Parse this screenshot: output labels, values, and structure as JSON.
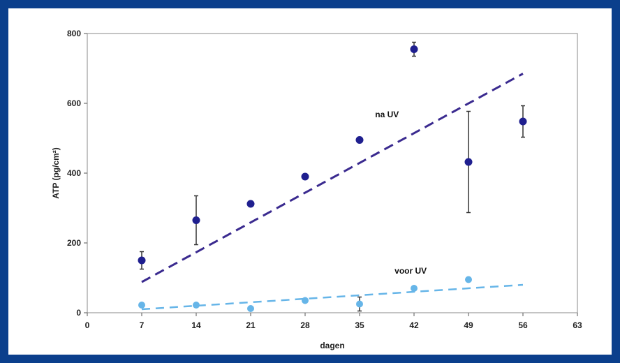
{
  "frame_color": "#0b3f8c",
  "chart_data": {
    "type": "scatter",
    "xlabel": "dagen",
    "ylabel": "ATP (pg/cm²)",
    "xlim": [
      0,
      63
    ],
    "ylim": [
      0,
      800
    ],
    "xticks": [
      0,
      7,
      14,
      21,
      28,
      35,
      42,
      49,
      56,
      63
    ],
    "yticks": [
      0,
      200,
      400,
      600,
      800
    ],
    "grid": false,
    "series": [
      {
        "name": "na UV",
        "color": "#1f1f8f",
        "x": [
          7,
          14,
          21,
          28,
          35,
          42,
          49,
          56
        ],
        "y": [
          150,
          265,
          312,
          390,
          495,
          755,
          432,
          548
        ],
        "err": [
          25,
          70,
          0,
          0,
          0,
          20,
          145,
          45
        ],
        "trend": {
          "x": [
            7,
            56
          ],
          "y": [
            88,
            685
          ],
          "color": "#3a2a8f"
        }
      },
      {
        "name": "voor UV",
        "color": "#66b5e8",
        "x": [
          7,
          14,
          21,
          28,
          35,
          42,
          49
        ],
        "y": [
          22,
          22,
          12,
          35,
          25,
          70,
          95
        ],
        "err": [
          0,
          0,
          0,
          0,
          20,
          0,
          0
        ],
        "trend": {
          "x": [
            7,
            56
          ],
          "y": [
            10,
            80
          ],
          "color": "#66b5e8"
        }
      }
    ],
    "annotations": [
      {
        "text": "na UV",
        "x": 37,
        "y": 560
      },
      {
        "text": "voor UV",
        "x": 39.5,
        "y": 112
      }
    ]
  }
}
